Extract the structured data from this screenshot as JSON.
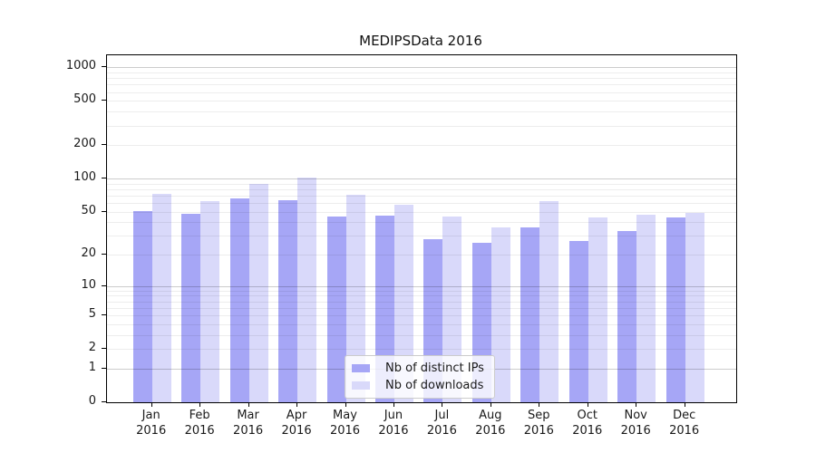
{
  "title": "MEDIPSData 2016",
  "colors": {
    "series_distinct_ips": "#a6a6f6",
    "series_downloads": "#d9d9fa",
    "axis": "#000000",
    "grid_major": "#cccccc",
    "grid_minor": "#ededed",
    "text": "#1a1a1a",
    "background": "#ffffff"
  },
  "chart_data": {
    "type": "bar",
    "scale": "log1p",
    "title": "MEDIPSData 2016",
    "xlabel": "",
    "ylabel": "",
    "year": "2016",
    "categories": [
      "Jan",
      "Feb",
      "Mar",
      "Apr",
      "May",
      "Jun",
      "Jul",
      "Aug",
      "Sep",
      "Oct",
      "Nov",
      "Dec"
    ],
    "series": [
      {
        "name": "Nb of distinct IPs",
        "color": "#a6a6f6",
        "values": [
          51,
          48,
          66,
          64,
          45,
          46,
          28,
          26,
          36,
          27,
          33,
          44
        ]
      },
      {
        "name": "Nb of downloads",
        "color": "#d9d9fa",
        "values": [
          72,
          62,
          90,
          102,
          71,
          58,
          45,
          36,
          62,
          44,
          47,
          49
        ]
      }
    ],
    "yticks": [
      0,
      1,
      2,
      5,
      10,
      20,
      50,
      100,
      200,
      500,
      1000
    ],
    "ylim": [
      0,
      1280
    ],
    "grid": true,
    "legend_position": "lower-center"
  }
}
